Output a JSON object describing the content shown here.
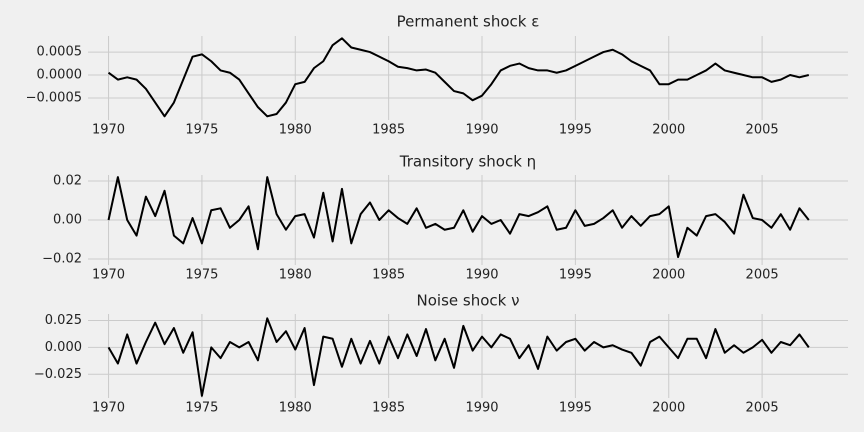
{
  "chart_data": [
    {
      "type": "line",
      "title": "Permanent shock ε",
      "color": "#000000",
      "grid": true,
      "x": [
        1970,
        1970.5,
        1971,
        1971.5,
        1972,
        1972.5,
        1973,
        1973.5,
        1974,
        1974.5,
        1975,
        1975.5,
        1976,
        1976.5,
        1977,
        1977.5,
        1978,
        1978.5,
        1979,
        1979.5,
        1980,
        1980.5,
        1981,
        1981.5,
        1982,
        1982.5,
        1983,
        1983.5,
        1984,
        1984.5,
        1985,
        1985.5,
        1986,
        1986.5,
        1987,
        1987.5,
        1988,
        1988.5,
        1989,
        1989.5,
        1990,
        1990.5,
        1991,
        1991.5,
        1992,
        1992.5,
        1993,
        1993.5,
        1994,
        1994.5,
        1995,
        1995.5,
        1996,
        1996.5,
        1997,
        1997.5,
        1998,
        1998.5,
        1999,
        1999.5,
        2000,
        2000.5,
        2001,
        2001.5,
        2002,
        2002.5,
        2003,
        2003.5,
        2004,
        2004.5,
        2005,
        2005.5,
        2006,
        2006.5,
        2007,
        2007.5
      ],
      "values": [
        5e-05,
        -0.0001,
        -5e-05,
        -0.0001,
        -0.0003,
        -0.0006,
        -0.0009,
        -0.0006,
        -0.0001,
        0.0004,
        0.00045,
        0.0003,
        0.0001,
        5e-05,
        -0.0001,
        -0.0004,
        -0.0007,
        -0.0009,
        -0.00085,
        -0.0006,
        -0.0002,
        -0.00015,
        0.00015,
        0.0003,
        0.00065,
        0.0008,
        0.0006,
        0.00055,
        0.0005,
        0.0004,
        0.0003,
        0.00018,
        0.00015,
        0.0001,
        0.00012,
        5e-05,
        -0.00015,
        -0.00035,
        -0.0004,
        -0.00055,
        -0.00045,
        -0.0002,
        0.0001,
        0.0002,
        0.00025,
        0.00015,
        0.0001,
        0.0001,
        5e-05,
        0.0001,
        0.0002,
        0.0003,
        0.0004,
        0.0005,
        0.00055,
        0.00045,
        0.0003,
        0.0002,
        0.0001,
        -0.0002,
        -0.0002,
        -0.0001,
        -0.0001,
        0,
        0.0001,
        0.00025,
        0.0001,
        5e-05,
        0,
        -5e-05,
        -5e-05,
        -0.00015,
        -0.0001,
        0,
        -5e-05,
        0
      ],
      "xlim": [
        1968.9,
        2009.6
      ],
      "xticks": [
        1970,
        1975,
        1980,
        1985,
        1990,
        1995,
        2000,
        2005
      ],
      "ylim": [
        -0.00098,
        0.00085
      ],
      "yticks": [
        {
          "value": -0.0005,
          "label": "−0.0005"
        },
        {
          "value": 0,
          "label": "0.0000"
        },
        {
          "value": 0.0005,
          "label": "0.0005"
        }
      ]
    },
    {
      "type": "line",
      "title": "Transitory shock η",
      "color": "#000000",
      "grid": true,
      "x": [
        1970,
        1970.5,
        1971,
        1971.5,
        1972,
        1972.5,
        1973,
        1973.5,
        1974,
        1974.5,
        1975,
        1975.5,
        1976,
        1976.5,
        1977,
        1977.5,
        1978,
        1978.5,
        1979,
        1979.5,
        1980,
        1980.5,
        1981,
        1981.5,
        1982,
        1982.5,
        1983,
        1983.5,
        1984,
        1984.5,
        1985,
        1985.5,
        1986,
        1986.5,
        1987,
        1987.5,
        1988,
        1988.5,
        1989,
        1989.5,
        1990,
        1990.5,
        1991,
        1991.5,
        1992,
        1992.5,
        1993,
        1993.5,
        1994,
        1994.5,
        1995,
        1995.5,
        1996,
        1996.5,
        1997,
        1997.5,
        1998,
        1998.5,
        1999,
        1999.5,
        2000,
        2000.5,
        2001,
        2001.5,
        2002,
        2002.5,
        2003,
        2003.5,
        2004,
        2004.5,
        2005,
        2005.5,
        2006,
        2006.5,
        2007,
        2007.5
      ],
      "values": [
        0,
        0.022,
        0,
        -0.008,
        0.012,
        0.002,
        0.015,
        -0.008,
        -0.012,
        0.001,
        -0.012,
        0.005,
        0.006,
        -0.004,
        0,
        0.007,
        -0.015,
        0.022,
        0.003,
        -0.005,
        0.002,
        0.003,
        -0.009,
        0.014,
        -0.011,
        0.016,
        -0.012,
        0.003,
        0.009,
        0,
        0.005,
        0.001,
        -0.002,
        0.006,
        -0.004,
        -0.002,
        -0.005,
        -0.004,
        0.005,
        -0.006,
        0.002,
        -0.002,
        0,
        -0.007,
        0.003,
        0.002,
        0.004,
        0.007,
        -0.005,
        -0.004,
        0.005,
        -0.003,
        -0.002,
        0.001,
        0.005,
        -0.004,
        0.002,
        -0.003,
        0.002,
        0.003,
        0.007,
        -0.019,
        -0.004,
        -0.008,
        0.002,
        0.003,
        -0.001,
        -0.007,
        0.013,
        0.001,
        0,
        -0.004,
        0.003,
        -0.005,
        0.006,
        0
      ],
      "xlim": [
        1968.9,
        2009.6
      ],
      "xticks": [
        1970,
        1975,
        1980,
        1985,
        1990,
        1995,
        2000,
        2005
      ],
      "ylim": [
        -0.0231,
        0.0231
      ],
      "yticks": [
        {
          "value": -0.02,
          "label": "−0.02"
        },
        {
          "value": 0,
          "label": "0.00"
        },
        0.02
      ]
    },
    {
      "type": "line",
      "title": "Noise shock ν",
      "color": "#000000",
      "grid": true,
      "x": [
        1970,
        1970.5,
        1971,
        1971.5,
        1972,
        1972.5,
        1973,
        1973.5,
        1974,
        1974.5,
        1975,
        1975.5,
        1976,
        1976.5,
        1977,
        1977.5,
        1978,
        1978.5,
        1979,
        1979.5,
        1980,
        1980.5,
        1981,
        1981.5,
        1982,
        1982.5,
        1983,
        1983.5,
        1984,
        1984.5,
        1985,
        1985.5,
        1986,
        1986.5,
        1987,
        1987.5,
        1988,
        1988.5,
        1989,
        1989.5,
        1990,
        1990.5,
        1991,
        1991.5,
        1992,
        1992.5,
        1993,
        1993.5,
        1994,
        1994.5,
        1995,
        1995.5,
        1996,
        1996.5,
        1997,
        1997.5,
        1998,
        1998.5,
        1999,
        1999.5,
        2000,
        2000.5,
        2001,
        2001.5,
        2002,
        2002.5,
        2003,
        2003.5,
        2004,
        2004.5,
        2005,
        2005.5,
        2006,
        2006.5,
        2007,
        2007.5
      ],
      "values": [
        0,
        -0.015,
        0.012,
        -0.015,
        0.005,
        0.023,
        0.003,
        0.018,
        -0.005,
        0.014,
        -0.045,
        0,
        -0.01,
        0.005,
        0,
        0.005,
        -0.012,
        0.027,
        0.005,
        0.015,
        -0.002,
        0.018,
        -0.035,
        0.01,
        0.008,
        -0.018,
        0.008,
        -0.015,
        0.006,
        -0.015,
        0.01,
        -0.01,
        0.012,
        -0.008,
        0.017,
        -0.012,
        0.008,
        -0.019,
        0.02,
        -0.003,
        0.01,
        0,
        0.012,
        0.008,
        -0.01,
        0.002,
        -0.02,
        0.01,
        -0.003,
        0.005,
        0.008,
        -0.003,
        0.005,
        0,
        0.002,
        -0.002,
        -0.005,
        -0.017,
        0.005,
        0.01,
        0,
        -0.01,
        0.008,
        0.008,
        -0.01,
        0.017,
        -0.005,
        0.002,
        -0.005,
        0,
        0.007,
        -0.005,
        0.005,
        0.002,
        0.012,
        0
      ],
      "xlim": [
        1968.9,
        2009.6
      ],
      "xticks": [
        1970,
        1975,
        1980,
        1985,
        1990,
        1995,
        2000,
        2005
      ],
      "ylim": [
        -0.047,
        0.031
      ],
      "yticks": [
        {
          "value": -0.025,
          "label": "−0.025"
        },
        {
          "value": 0,
          "label": "0.000"
        },
        {
          "value": 0.025,
          "label": "0.025"
        }
      ]
    }
  ]
}
